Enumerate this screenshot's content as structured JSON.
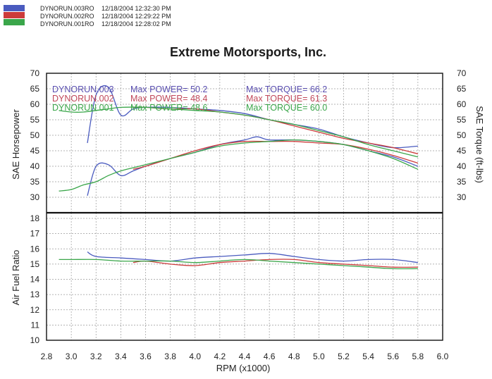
{
  "legend": [
    {
      "label": "DYNORUN.003RO",
      "timestamp": "12/18/2004 12:32:30 PM",
      "color": "#4a5bbf"
    },
    {
      "label": "DYNORUN.002RO",
      "timestamp": "12/18/2004 12:29:22 PM",
      "color": "#cc3b3b"
    },
    {
      "label": "DYNORUN.001RO",
      "timestamp": "12/18/2004 12:28:02 PM",
      "color": "#3aa64a"
    }
  ],
  "title": "Extreme Motorsports, Inc.",
  "annotations": [
    {
      "run": "DYNORUN.003",
      "power": "Max POWER= 50.2",
      "torque": "Max TORQUE= 66.2",
      "color": "#5a4fb0"
    },
    {
      "run": "DYNORUN.002",
      "power": "Max POWER= 48.4",
      "torque": "Max TORQUE= 61.3",
      "color": "#c0485a"
    },
    {
      "run": "DYNORUN.001",
      "power": "Max POWER= 48.6",
      "torque": "Max TORQUE= 60.0",
      "color": "#3aa64a"
    }
  ],
  "chart_data": [
    {
      "type": "line",
      "panel": "power-torque",
      "ylabel_left": "SAE Horsepower",
      "ylabel_right": "SAE Torque (ft-lbs)",
      "ylim": [
        25,
        70
      ],
      "left_ticks": [
        30,
        35,
        40,
        45,
        50,
        55,
        60,
        65,
        70
      ],
      "right_ticks": [
        30,
        35,
        40,
        45,
        50,
        55,
        60,
        65,
        70
      ],
      "grid": true,
      "series": [
        {
          "name": "DYNORUN.003RO",
          "measure": "horsepower",
          "color": "#4a5bbf",
          "x": [
            3.13,
            3.2,
            3.3,
            3.4,
            3.5,
            3.6,
            3.8,
            4.0,
            4.2,
            4.4,
            4.5,
            4.6,
            4.8,
            5.0,
            5.2,
            5.4,
            5.6,
            5.8
          ],
          "y": [
            30.5,
            40.0,
            40.5,
            37.0,
            38.5,
            40.0,
            42.5,
            44.5,
            47.0,
            48.5,
            49.5,
            48.5,
            48.5,
            48.0,
            47.0,
            45.0,
            43.0,
            40.0
          ]
        },
        {
          "name": "DYNORUN.002RO",
          "measure": "horsepower",
          "color": "#cc3b3b",
          "x": [
            3.5,
            3.6,
            3.8,
            4.0,
            4.2,
            4.4,
            4.6,
            4.8,
            5.0,
            5.2,
            5.4,
            5.6,
            5.8
          ],
          "y": [
            39.0,
            40.0,
            42.5,
            45.0,
            47.0,
            48.0,
            48.0,
            48.0,
            47.5,
            47.0,
            45.5,
            43.5,
            41.0
          ]
        },
        {
          "name": "DYNORUN.001RO",
          "measure": "horsepower",
          "color": "#3aa64a",
          "x": [
            2.9,
            3.0,
            3.1,
            3.2,
            3.3,
            3.4,
            3.6,
            3.8,
            4.0,
            4.2,
            4.4,
            4.6,
            4.8,
            5.0,
            5.2,
            5.4,
            5.6,
            5.8
          ],
          "y": [
            32.0,
            32.5,
            34.0,
            35.0,
            37.0,
            38.5,
            40.5,
            42.5,
            44.5,
            46.5,
            47.5,
            48.0,
            48.5,
            48.0,
            47.0,
            45.0,
            42.5,
            39.0
          ]
        },
        {
          "name": "DYNORUN.003RO",
          "measure": "torque",
          "color": "#4a5bbf",
          "x": [
            3.13,
            3.2,
            3.3,
            3.4,
            3.5,
            3.6,
            3.8,
            4.0,
            4.2,
            4.4,
            4.6,
            4.8,
            5.0,
            5.2,
            5.4,
            5.6,
            5.8
          ],
          "y": [
            47.5,
            63.0,
            65.5,
            56.5,
            58.5,
            59.0,
            59.0,
            58.5,
            58.0,
            57.0,
            55.0,
            53.5,
            52.0,
            49.5,
            47.5,
            46.0,
            46.5
          ]
        },
        {
          "name": "DYNORUN.002RO",
          "measure": "torque",
          "color": "#cc3b3b",
          "x": [
            3.5,
            3.6,
            3.8,
            4.0,
            4.2,
            4.4,
            4.6,
            4.8,
            5.0,
            5.2,
            5.4,
            5.6,
            5.8
          ],
          "y": [
            59.0,
            59.0,
            58.5,
            58.5,
            57.5,
            56.5,
            55.0,
            53.0,
            51.0,
            49.0,
            47.5,
            46.0,
            44.0
          ]
        },
        {
          "name": "DYNORUN.001RO",
          "measure": "torque",
          "color": "#3aa64a",
          "x": [
            2.9,
            3.0,
            3.1,
            3.2,
            3.3,
            3.4,
            3.6,
            3.8,
            4.0,
            4.2,
            4.4,
            4.6,
            4.8,
            5.0,
            5.2,
            5.4,
            5.6,
            5.8
          ],
          "y": [
            58.0,
            57.5,
            57.5,
            58.0,
            58.5,
            59.0,
            59.0,
            58.5,
            58.0,
            57.5,
            56.5,
            55.0,
            53.5,
            51.5,
            49.5,
            47.0,
            45.0,
            43.0
          ]
        }
      ]
    },
    {
      "type": "line",
      "panel": "air-fuel",
      "ylabel": "Air Fuel Ratio",
      "xlabel": "RPM (x1000)",
      "xlim": [
        2.8,
        6.0
      ],
      "x_ticks": [
        "2.8",
        "3.0",
        "3.2",
        "3.4",
        "3.6",
        "3.8",
        "4.0",
        "4.2",
        "4.4",
        "4.6",
        "4.8",
        "5.0",
        "5.2",
        "5.4",
        "5.6",
        "5.8",
        "6.0"
      ],
      "ylim": [
        10,
        18
      ],
      "y_ticks": [
        10,
        11,
        12,
        13,
        14,
        15,
        16,
        17,
        18
      ],
      "grid": true,
      "series": [
        {
          "name": "DYNORUN.003RO",
          "color": "#4a5bbf",
          "x": [
            3.13,
            3.2,
            3.4,
            3.6,
            3.8,
            4.0,
            4.2,
            4.4,
            4.6,
            4.8,
            5.0,
            5.2,
            5.4,
            5.6,
            5.8
          ],
          "y": [
            15.8,
            15.5,
            15.4,
            15.3,
            15.2,
            15.4,
            15.5,
            15.6,
            15.7,
            15.5,
            15.3,
            15.2,
            15.3,
            15.3,
            15.1
          ]
        },
        {
          "name": "DYNORUN.002RO",
          "color": "#cc3b3b",
          "x": [
            3.5,
            3.6,
            3.8,
            4.0,
            4.2,
            4.4,
            4.6,
            4.8,
            5.0,
            5.2,
            5.4,
            5.6,
            5.8
          ],
          "y": [
            15.1,
            15.2,
            15.0,
            14.9,
            15.1,
            15.2,
            15.3,
            15.3,
            15.1,
            15.0,
            14.9,
            14.8,
            14.8
          ]
        },
        {
          "name": "DYNORUN.001RO",
          "color": "#3aa64a",
          "x": [
            2.9,
            3.0,
            3.2,
            3.4,
            3.6,
            3.8,
            4.0,
            4.2,
            4.4,
            4.6,
            4.8,
            5.0,
            5.2,
            5.4,
            5.6,
            5.8
          ],
          "y": [
            15.3,
            15.3,
            15.3,
            15.2,
            15.2,
            15.2,
            15.1,
            15.2,
            15.3,
            15.2,
            15.1,
            15.0,
            14.9,
            14.8,
            14.7,
            14.7
          ]
        }
      ]
    }
  ]
}
